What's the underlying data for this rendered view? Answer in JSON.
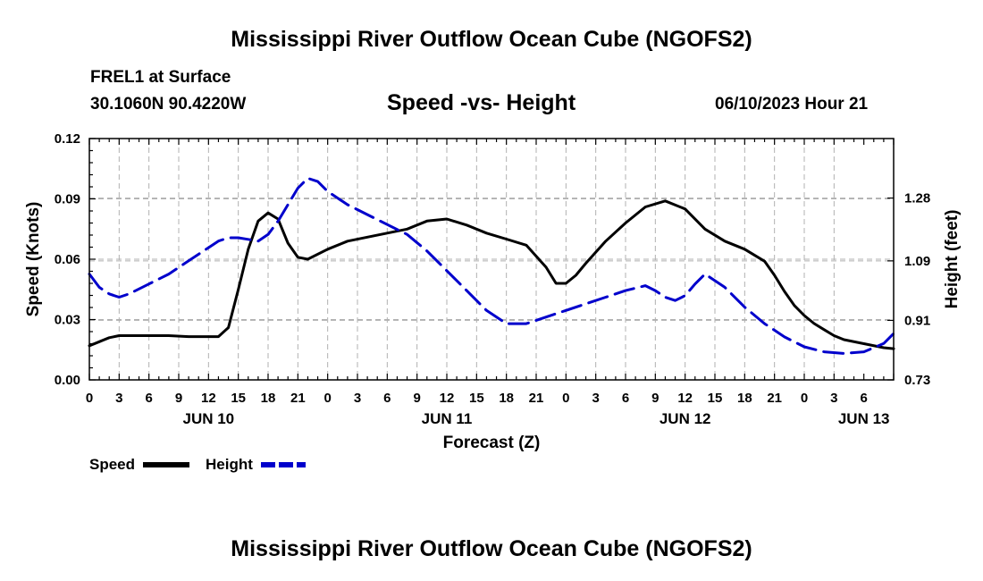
{
  "header": {
    "title": "Mississippi River Outflow Ocean Cube (NGOFS2)",
    "station": "FREL1 at Surface",
    "coords": "30.1060N  90.4220W",
    "chart_title": "Speed -vs- Height",
    "datetime": "06/10/2023 Hour 21"
  },
  "footer": {
    "title": "Mississippi River Outflow Ocean Cube (NGOFS2)"
  },
  "legend": {
    "speed_label": "Speed",
    "height_label": "Height"
  },
  "colors": {
    "speed": "#000000",
    "height": "#0000cc",
    "grid": "#b0b0b0"
  },
  "chart_data": {
    "type": "line",
    "title": "Speed -vs- Height",
    "xlabel": "Forecast (Z)",
    "ylabel": "Speed (Knots)",
    "y2label": "Height (feet)",
    "xlim": [
      0,
      81
    ],
    "ylim": [
      0,
      0.12
    ],
    "y2lim": [
      0.73,
      1.46
    ],
    "x_tick_labels": [
      "0",
      "3",
      "6",
      "9",
      "12",
      "15",
      "18",
      "21",
      "0",
      "3",
      "6",
      "9",
      "12",
      "15",
      "18",
      "21",
      "0",
      "3",
      "6",
      "9",
      "12",
      "15",
      "18",
      "21",
      "0",
      "3",
      "6"
    ],
    "date_labels": [
      {
        "label": "JUN 10",
        "x": 12
      },
      {
        "label": "JUN 11",
        "x": 36
      },
      {
        "label": "JUN 12",
        "x": 60
      },
      {
        "label": "JUN 13",
        "x": 78
      }
    ],
    "y_ticks": [
      0,
      0.03,
      0.06,
      0.09,
      0.12
    ],
    "y_tick_labels": [
      "0.00",
      "0.03",
      "0.06",
      "0.09",
      "0.12"
    ],
    "y2_ticks": [
      0.73,
      0.91,
      1.09,
      1.28
    ],
    "y2_tick_labels": [
      "0.73",
      "0.91",
      "1.09",
      "1.28"
    ],
    "series": [
      {
        "name": "Speed",
        "axis": "left",
        "style": "solid",
        "x": [
          0,
          1,
          2,
          3,
          4,
          5,
          6,
          8,
          10,
          12,
          13,
          14,
          15,
          16,
          17,
          18,
          19,
          20,
          21,
          22,
          24,
          26,
          28,
          30,
          32,
          34,
          36,
          38,
          40,
          42,
          44,
          46,
          47,
          48,
          49,
          50,
          52,
          54,
          56,
          58,
          60,
          62,
          64,
          66,
          68,
          69,
          70,
          71,
          72,
          73,
          74,
          75,
          76,
          78,
          80,
          81
        ],
        "values": [
          0.017,
          0.019,
          0.021,
          0.022,
          0.022,
          0.022,
          0.022,
          0.022,
          0.0215,
          0.0215,
          0.0215,
          0.026,
          0.045,
          0.065,
          0.079,
          0.083,
          0.08,
          0.068,
          0.061,
          0.06,
          0.065,
          0.069,
          0.071,
          0.073,
          0.075,
          0.079,
          0.08,
          0.077,
          0.073,
          0.07,
          0.067,
          0.056,
          0.048,
          0.048,
          0.052,
          0.058,
          0.069,
          0.078,
          0.086,
          0.089,
          0.085,
          0.075,
          0.069,
          0.065,
          0.059,
          0.052,
          0.044,
          0.037,
          0.032,
          0.028,
          0.025,
          0.022,
          0.02,
          0.018,
          0.016,
          0.0155
        ]
      },
      {
        "name": "Height",
        "axis": "right",
        "style": "dashed",
        "x": [
          0,
          1,
          2,
          3,
          4,
          6,
          8,
          10,
          12,
          13,
          14,
          15,
          16,
          17,
          18,
          19,
          20,
          21,
          22,
          23,
          24,
          26,
          28,
          30,
          32,
          34,
          36,
          38,
          40,
          42,
          44,
          46,
          48,
          50,
          52,
          54,
          56,
          57,
          58,
          59,
          60,
          61,
          62,
          64,
          66,
          68,
          70,
          72,
          74,
          76,
          78,
          80,
          81
        ],
        "values": [
          1.05,
          1.01,
          0.99,
          0.98,
          0.99,
          1.02,
          1.05,
          1.09,
          1.13,
          1.15,
          1.16,
          1.16,
          1.155,
          1.15,
          1.17,
          1.21,
          1.26,
          1.31,
          1.34,
          1.33,
          1.3,
          1.26,
          1.23,
          1.2,
          1.17,
          1.12,
          1.06,
          1.0,
          0.94,
          0.9,
          0.9,
          0.92,
          0.94,
          0.96,
          0.98,
          1.0,
          1.015,
          1.0,
          0.98,
          0.97,
          0.985,
          1.02,
          1.05,
          1.01,
          0.95,
          0.9,
          0.86,
          0.83,
          0.815,
          0.81,
          0.815,
          0.84,
          0.87
        ]
      }
    ]
  }
}
